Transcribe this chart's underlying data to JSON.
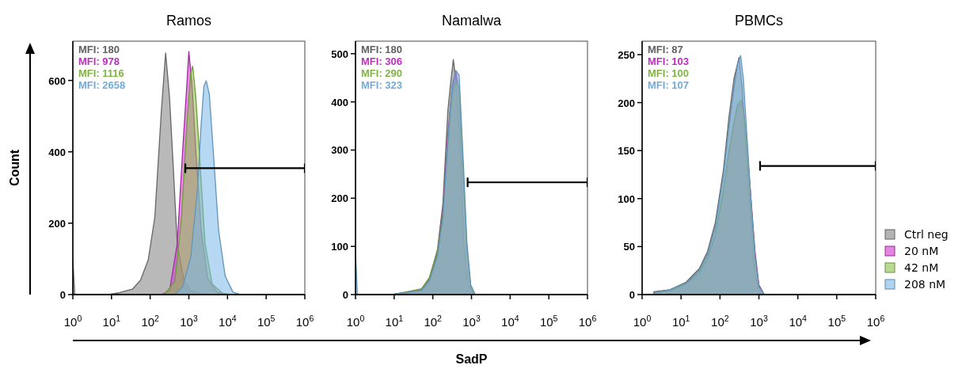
{
  "chart_data": [
    {
      "type": "area",
      "title": "Ramos",
      "ylabel": "Count",
      "log": "x",
      "xlim": [
        1,
        1000000
      ],
      "ylim": [
        0,
        710
      ],
      "yticks": [
        0,
        200,
        400,
        600
      ],
      "xticks": [
        {
          "value": 1,
          "label": "10$^{0}$"
        },
        {
          "value": 10,
          "label": "10$^{1}$"
        },
        {
          "value": 100,
          "label": "10$^{2}$"
        },
        {
          "value": 1000,
          "label": "10$^{3}$"
        },
        {
          "value": 10000,
          "label": "10$^{4}$"
        },
        {
          "value": 100000,
          "label": "10$^{5}$"
        },
        {
          "value": 1000000,
          "label": "10$^{6}$"
        }
      ],
      "annotations": [
        "MFI: 180",
        "MFI: 978",
        "MFI: 1116",
        "MFI: 2658"
      ],
      "series": [
        {
          "color": "#808080",
          "x": [
            1,
            1.12,
            8.3,
            15.8,
            34.7,
            56,
            89,
            132,
            195,
            251,
            316,
            398,
            501,
            759,
            1122,
            2089,
            5000
          ],
          "values": [
            100,
            0,
            0,
            5,
            15,
            40,
            97,
            217,
            516,
            677,
            554,
            352,
            142,
            37,
            11,
            2,
            0
          ]
        },
        {
          "color": "#cc33cc",
          "x": [
            195,
            316,
            501,
            692,
            891,
            1000,
            1202,
            1514,
            2089,
            3090,
            5370,
            10000
          ],
          "values": [
            0,
            10,
            142,
            404,
            591,
            681,
            591,
            404,
            180,
            45,
            7,
            0
          ]
        },
        {
          "color": "#8dc04a",
          "x": [
            229,
            437,
            646,
            891,
            1122,
            1259,
            1514,
            1950,
            2630,
            3981,
            7413,
            12023
          ],
          "values": [
            0,
            37,
            217,
            479,
            621,
            640,
            554,
            367,
            142,
            30,
            4,
            0
          ]
        },
        {
          "color": "#7ab8e8",
          "x": [
            437,
            692,
            1122,
            1660,
            2089,
            2455,
            2818,
            3388,
            4266,
            5888,
            8710,
            13804,
            22387
          ],
          "values": [
            0,
            22,
            105,
            292,
            479,
            584,
            599,
            561,
            404,
            180,
            52,
            7,
            0
          ]
        },
        {
          "type": "line",
          "color": "#000000",
          "x": [
            813,
            1000000
          ],
          "values": [
            354,
            354
          ]
        }
      ]
    },
    {
      "type": "area",
      "title": "Namalwa",
      "xlabel": "SadP",
      "log": "x",
      "xlim": [
        1,
        1000000
      ],
      "ylim": [
        0,
        526
      ],
      "yticks": [
        0,
        100,
        200,
        300,
        400,
        500
      ],
      "xticks": [
        {
          "value": 1,
          "label": "10$^{0}$"
        },
        {
          "value": 10,
          "label": "10$^{1}$"
        },
        {
          "value": 100,
          "label": "10$^{2}$"
        },
        {
          "value": 1000,
          "label": "10$^{3}$"
        },
        {
          "value": 10000,
          "label": "10$^{4}$"
        },
        {
          "value": 100000,
          "label": "10$^{5}$"
        },
        {
          "value": 1000000,
          "label": "10$^{6}$"
        }
      ],
      "annotations": [
        "MFI: 180",
        "MFI: 306",
        "MFI: 290",
        "MFI: 323"
      ],
      "series": [
        {
          "color": "#808080",
          "x": [
            9.1,
            23.4,
            51,
            81,
            132,
            182,
            245,
            288,
            339,
            398,
            501,
            631,
            813,
            1122
          ],
          "values": [
            0,
            3,
            11,
            33,
            94,
            188,
            382,
            438,
            488,
            443,
            327,
            105,
            22,
            0
          ]
        },
        {
          "color": "#cc33cc",
          "x": [
            9.1,
            51,
            81,
            132,
            182,
            245,
            316,
            398,
            479,
            603,
            759,
            955,
            1202
          ],
          "values": [
            0,
            10,
            30,
            85,
            170,
            330,
            430,
            462,
            420,
            250,
            90,
            15,
            0
          ]
        },
        {
          "color": "#8dc04a",
          "x": [
            9.1,
            51,
            81,
            132,
            182,
            245,
            316,
            398,
            479,
            603,
            759,
            955,
            1202
          ],
          "values": [
            0,
            12,
            35,
            90,
            165,
            310,
            410,
            445,
            430,
            260,
            95,
            18,
            0
          ]
        },
        {
          "color": "#7ab8e8",
          "x": [
            1,
            1.12,
            9.1,
            51,
            81,
            132,
            182,
            245,
            316,
            398,
            479,
            603,
            759,
            955,
            1259
          ],
          "values": [
            90,
            0,
            0,
            9,
            28,
            80,
            160,
            320,
            435,
            465,
            455,
            290,
            110,
            20,
            0
          ]
        },
        {
          "type": "line",
          "color": "#000000",
          "x": [
            794,
            1000000
          ],
          "values": [
            233,
            233
          ]
        }
      ]
    },
    {
      "type": "area",
      "title": "PBMCs",
      "log": "x",
      "xlim": [
        1,
        1000000
      ],
      "ylim": [
        0,
        264
      ],
      "yticks": [
        0,
        50,
        100,
        150,
        200,
        250
      ],
      "legend": "right",
      "xticks": [
        {
          "value": 1,
          "label": "10$^{0}$"
        },
        {
          "value": 10,
          "label": "10$^{1}$"
        },
        {
          "value": 100,
          "label": "10$^{2}$"
        },
        {
          "value": 1000,
          "label": "10$^{3}$"
        },
        {
          "value": 10000,
          "label": "10$^{4}$"
        },
        {
          "value": 100000,
          "label": "10$^{5}$"
        },
        {
          "value": 1000000,
          "label": "10$^{6}$"
        }
      ],
      "annotations": [
        "MFI: 87",
        "MFI: 103",
        "MFI: 100",
        "MFI: 107"
      ],
      "series": [
        {
          "name": "Ctrl neg",
          "color": "#808080",
          "x": [
            2,
            5.2,
            13.5,
            29.5,
            47.9,
            75.9,
            123,
            170,
            229,
            309,
            372,
            468,
            589,
            759,
            955,
            1318
          ],
          "values": [
            3,
            5,
            13,
            27,
            45,
            75,
            130,
            185,
            225,
            247,
            215,
            150,
            90,
            30,
            5,
            0
          ]
        },
        {
          "name": "20 nM",
          "color": "#cc33cc",
          "x": [
            2,
            5.2,
            13.5,
            29.5,
            47.9,
            75.9,
            123,
            170,
            229,
            282,
            380,
            417,
            501,
            631,
            794,
            1000,
            1380
          ],
          "values": [
            2,
            4,
            11,
            22,
            38,
            62,
            108,
            148,
            178,
            196,
            200,
            188,
            152,
            98,
            45,
            10,
            0
          ]
        },
        {
          "name": "42 nM",
          "color": "#8dc04a",
          "x": [
            2,
            5.2,
            13.5,
            29.5,
            47.9,
            75.9,
            123,
            170,
            229,
            282,
            355,
            417,
            501,
            631,
            794,
            1000,
            1380
          ],
          "values": [
            2,
            4,
            11,
            22,
            38,
            62,
            110,
            150,
            180,
            198,
            203,
            185,
            150,
            95,
            40,
            8,
            0
          ]
        },
        {
          "name": "208 nM",
          "color": "#7ab8e8",
          "x": [
            2,
            5.2,
            13.5,
            29.5,
            47.9,
            75.9,
            123,
            170,
            229,
            282,
            339,
            398,
            501,
            631,
            794,
            1000,
            1380
          ],
          "values": [
            2,
            5,
            12,
            25,
            42,
            70,
            125,
            175,
            215,
            240,
            249,
            225,
            160,
            95,
            40,
            8,
            0
          ]
        },
        {
          "type": "line",
          "color": "#000000",
          "x": [
            1072,
            1000000
          ],
          "values": [
            134,
            134
          ]
        }
      ]
    }
  ]
}
